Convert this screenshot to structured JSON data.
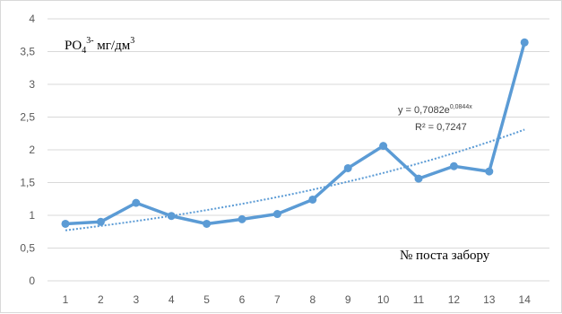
{
  "chart_data": {
    "type": "line",
    "x": [
      1,
      2,
      3,
      4,
      5,
      6,
      7,
      8,
      9,
      10,
      11,
      12,
      13,
      14
    ],
    "categories": [
      "1",
      "2",
      "3",
      "4",
      "5",
      "6",
      "7",
      "8",
      "9",
      "10",
      "11",
      "12",
      "13",
      "14"
    ],
    "series": [
      {
        "values": [
          0.87,
          0.9,
          1.19,
          0.99,
          0.87,
          0.94,
          1.02,
          1.24,
          1.72,
          2.06,
          1.56,
          1.75,
          1.67,
          3.64
        ],
        "color": "#5b9bd5"
      }
    ],
    "trendline": {
      "type": "exponential",
      "coef": 0.7082,
      "rate": 0.0844,
      "color": "#5b9bd5",
      "equation_main": "y = 0,7082e",
      "equation_exp": "0,0844x",
      "r2_label": "R² = 0,7247"
    },
    "ylabel_parts": {
      "base": "PO",
      "sub": "4",
      "sup": "3-",
      "units": " мг/дм",
      "units_sup": "3"
    },
    "xlabel": "№ поста забору",
    "y_ticks": [
      "0",
      "0,5",
      "1",
      "1,5",
      "2",
      "2,5",
      "3",
      "3,5",
      "4"
    ],
    "y_tick_values": [
      0,
      0.5,
      1,
      1.5,
      2,
      2.5,
      3,
      3.5,
      4
    ],
    "ylim": [
      0,
      4
    ],
    "grid": true,
    "legend": "none"
  }
}
